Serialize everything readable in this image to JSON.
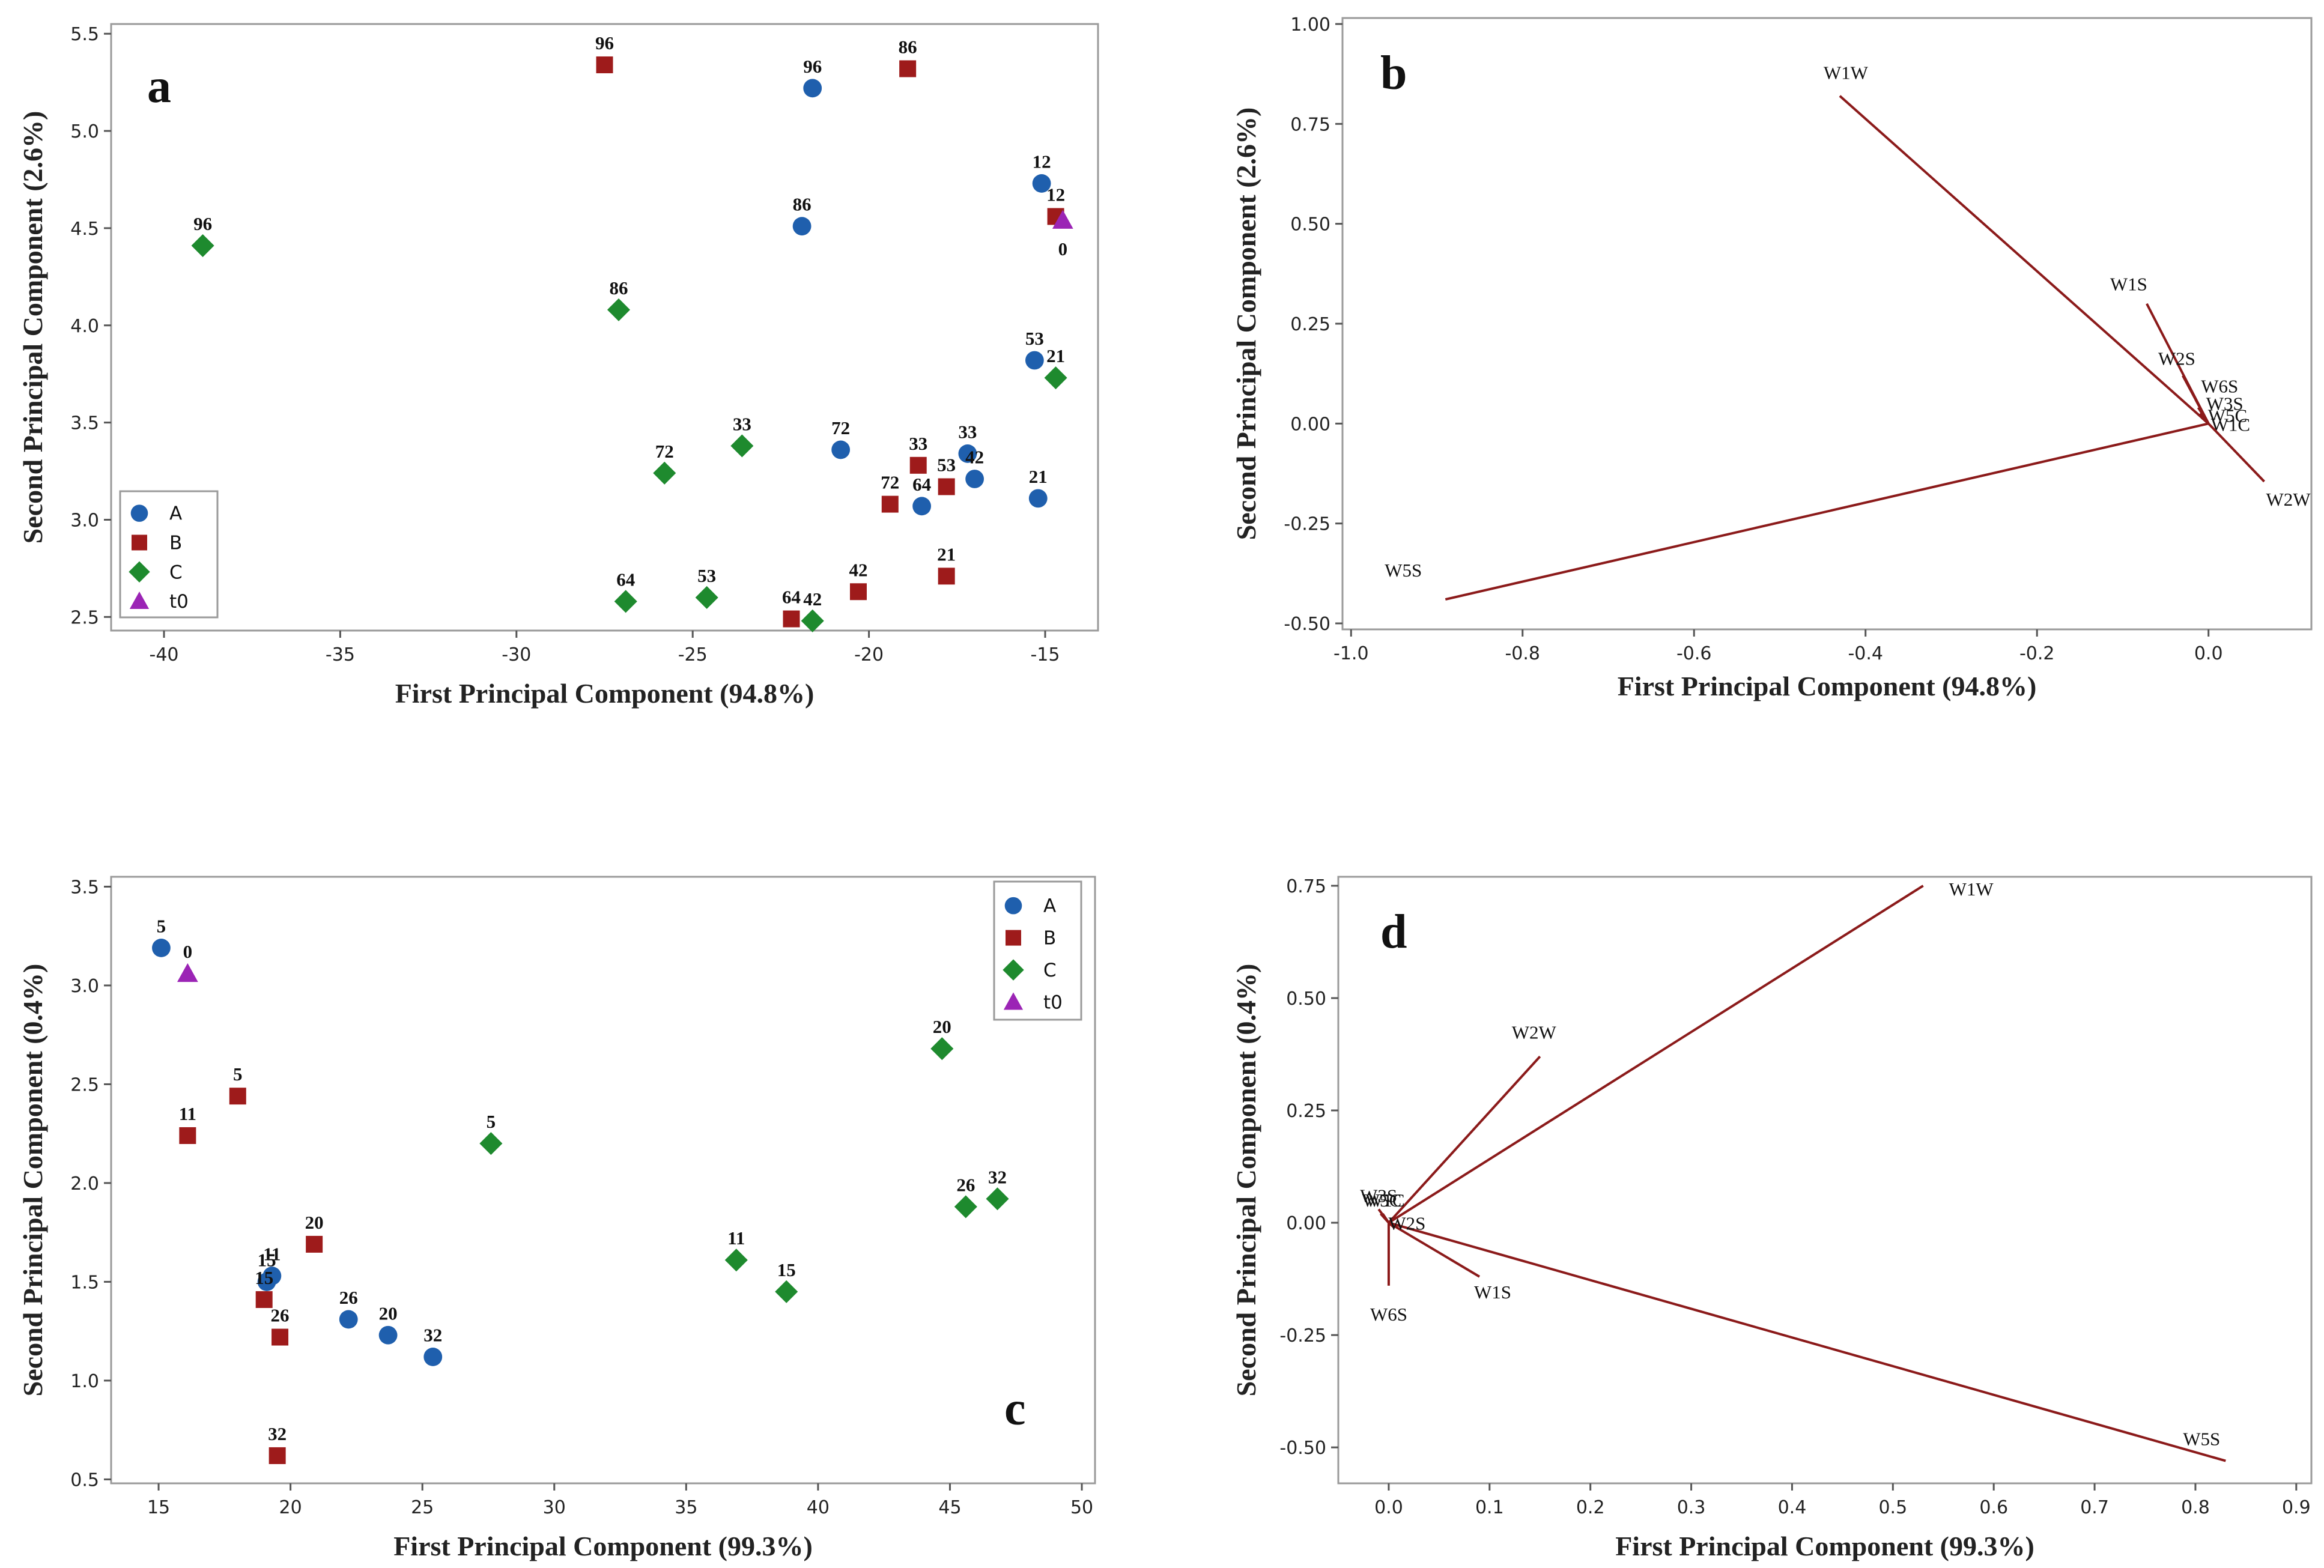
{
  "colors": {
    "A": "#1f5fad",
    "B": "#9e1b1b",
    "C": "#1e8a2e",
    "t0": "#9b24b5",
    "vector": "#8b1a1a"
  },
  "chart_data": [
    {
      "panel": "a",
      "type": "scatter",
      "xlabel": "First Principal Component (94.8%)",
      "ylabel": "Second Principal Component (2.6%)",
      "xlim": [
        -41.5,
        -13.5
      ],
      "ylim": [
        2.43,
        5.55
      ],
      "xticks": [
        -40,
        -35,
        -30,
        -25,
        -20,
        -15
      ],
      "yticks": [
        2.5,
        3.0,
        3.5,
        4.0,
        4.5,
        5.0,
        5.5
      ],
      "yticklabels": [
        "2.5",
        "3.0",
        "3.5",
        "4.0",
        "4.5",
        "5.0",
        "5.5"
      ],
      "legend": {
        "position": "bottom-left",
        "entries": [
          "A",
          "B",
          "C",
          "t0"
        ]
      },
      "series": [
        {
          "name": "A",
          "marker": "circle",
          "points": [
            {
              "x": -21.6,
              "y": 5.22,
              "label": "96"
            },
            {
              "x": -21.9,
              "y": 4.51,
              "label": "86"
            },
            {
              "x": -15.1,
              "y": 4.73,
              "label": "12"
            },
            {
              "x": -15.3,
              "y": 3.82,
              "label": "53"
            },
            {
              "x": -20.8,
              "y": 3.36,
              "label": "72"
            },
            {
              "x": -17.2,
              "y": 3.34,
              "label": "33"
            },
            {
              "x": -17.0,
              "y": 3.21,
              "label": "42"
            },
            {
              "x": -18.5,
              "y": 3.07,
              "label": "64"
            },
            {
              "x": -15.2,
              "y": 3.11,
              "label": "21"
            }
          ]
        },
        {
          "name": "B",
          "marker": "square",
          "points": [
            {
              "x": -27.5,
              "y": 5.34,
              "label": "96"
            },
            {
              "x": -18.9,
              "y": 5.32,
              "label": "86"
            },
            {
              "x": -14.7,
              "y": 4.56,
              "label": "12"
            },
            {
              "x": -18.6,
              "y": 3.28,
              "label": "33"
            },
            {
              "x": -17.8,
              "y": 3.17,
              "label": "53"
            },
            {
              "x": -19.4,
              "y": 3.08,
              "label": "72"
            },
            {
              "x": -17.8,
              "y": 2.71,
              "label": "21"
            },
            {
              "x": -20.3,
              "y": 2.63,
              "label": "42"
            },
            {
              "x": -22.2,
              "y": 2.49,
              "label": "64"
            }
          ]
        },
        {
          "name": "C",
          "marker": "diamond",
          "points": [
            {
              "x": -38.9,
              "y": 4.41,
              "label": "96"
            },
            {
              "x": -27.1,
              "y": 4.08,
              "label": "86"
            },
            {
              "x": -14.7,
              "y": 3.73,
              "label": "21"
            },
            {
              "x": -23.6,
              "y": 3.38,
              "label": "33"
            },
            {
              "x": -25.8,
              "y": 3.24,
              "label": "72"
            },
            {
              "x": -26.9,
              "y": 2.58,
              "label": "64"
            },
            {
              "x": -24.6,
              "y": 2.6,
              "label": "53"
            },
            {
              "x": -21.6,
              "y": 2.48,
              "label": "42"
            }
          ]
        },
        {
          "name": "t0",
          "marker": "triangle",
          "points": [
            {
              "x": -14.5,
              "y": 4.54,
              "label": "0"
            }
          ]
        }
      ]
    },
    {
      "panel": "b",
      "type": "line",
      "subtype": "biplot-vectors",
      "xlabel": "First Principal Component (94.8%)",
      "ylabel": "Second Principal Component (2.6%)",
      "xlim": [
        -1.01,
        0.12
      ],
      "ylim": [
        -0.515,
        1.015
      ],
      "xticks": [
        -1.0,
        -0.8,
        -0.6,
        -0.4,
        -0.2,
        0.0
      ],
      "xticklabels": [
        "-1.0",
        "-0.8",
        "-0.6",
        "-0.4",
        "-0.2",
        "0.0"
      ],
      "yticks": [
        -0.5,
        -0.25,
        0.0,
        0.25,
        0.5,
        0.75,
        1.0
      ],
      "yticklabels": [
        "-0.50",
        "-0.25",
        "0.00",
        "0.25",
        "0.50",
        "0.75",
        "1.00"
      ],
      "vectors": [
        {
          "name": "W1W",
          "x": -0.43,
          "y": 0.82,
          "label": "W1W"
        },
        {
          "name": "W1S",
          "x": -0.072,
          "y": 0.3,
          "label": "W1S"
        },
        {
          "name": "W2S",
          "x": -0.03,
          "y": 0.12,
          "label": "W2S"
        },
        {
          "name": "W6S",
          "x": -0.015,
          "y": 0.06,
          "label": "W6S"
        },
        {
          "name": "W3S",
          "x": -0.012,
          "y": 0.04,
          "label": "W3S"
        },
        {
          "name": "W5C",
          "x": -0.01,
          "y": 0.025,
          "label": "W5C"
        },
        {
          "name": "W1C",
          "x": -0.008,
          "y": 0.015,
          "label": "W1C"
        },
        {
          "name": "W2W",
          "x": 0.065,
          "y": -0.145,
          "label": "W2W"
        },
        {
          "name": "W5S",
          "x": -0.89,
          "y": -0.44,
          "label": "W5S"
        }
      ]
    },
    {
      "panel": "c",
      "type": "scatter",
      "xlabel": "First Principal Component (99.3%)",
      "ylabel": "Second Principal Component (0.4%)",
      "xlim": [
        13.2,
        50.5
      ],
      "ylim": [
        0.48,
        3.55
      ],
      "xticks": [
        15,
        20,
        25,
        30,
        35,
        40,
        45,
        50
      ],
      "yticks": [
        0.5,
        1.0,
        1.5,
        2.0,
        2.5,
        3.0,
        3.5
      ],
      "yticklabels": [
        "0.5",
        "1.0",
        "1.5",
        "2.0",
        "2.5",
        "3.0",
        "3.5"
      ],
      "legend": {
        "position": "top-right",
        "entries": [
          "A",
          "B",
          "C",
          "t0"
        ]
      },
      "series": [
        {
          "name": "A",
          "marker": "circle",
          "points": [
            {
              "x": 15.1,
              "y": 3.19,
              "label": "5"
            },
            {
              "x": 19.3,
              "y": 1.53,
              "label": "11"
            },
            {
              "x": 19.1,
              "y": 1.5,
              "label": "15"
            },
            {
              "x": 22.2,
              "y": 1.31,
              "label": "26"
            },
            {
              "x": 23.7,
              "y": 1.23,
              "label": "20"
            },
            {
              "x": 25.4,
              "y": 1.12,
              "label": "32"
            }
          ]
        },
        {
          "name": "B",
          "marker": "square",
          "points": [
            {
              "x": 18.0,
              "y": 2.44,
              "label": "5"
            },
            {
              "x": 16.1,
              "y": 2.24,
              "label": "11"
            },
            {
              "x": 20.9,
              "y": 1.69,
              "label": "20"
            },
            {
              "x": 19.0,
              "y": 1.41,
              "label": "15"
            },
            {
              "x": 19.6,
              "y": 1.22,
              "label": "26"
            },
            {
              "x": 19.5,
              "y": 0.62,
              "label": "32"
            }
          ]
        },
        {
          "name": "C",
          "marker": "diamond",
          "points": [
            {
              "x": 27.6,
              "y": 2.2,
              "label": "5"
            },
            {
              "x": 36.9,
              "y": 1.61,
              "label": "11"
            },
            {
              "x": 38.8,
              "y": 1.45,
              "label": "15"
            },
            {
              "x": 44.7,
              "y": 2.68,
              "label": "20"
            },
            {
              "x": 45.6,
              "y": 1.88,
              "label": "26"
            },
            {
              "x": 46.8,
              "y": 1.92,
              "label": "32"
            }
          ]
        },
        {
          "name": "t0",
          "marker": "triangle",
          "points": [
            {
              "x": 16.1,
              "y": 3.06,
              "label": "0"
            }
          ]
        }
      ]
    },
    {
      "panel": "d",
      "type": "line",
      "subtype": "biplot-vectors",
      "xlabel": "First Principal Component (99.3%)",
      "ylabel": "Second Principal Component (0.4%)",
      "xlim": [
        -0.05,
        0.915
      ],
      "ylim": [
        -0.58,
        0.77
      ],
      "xticks": [
        0.0,
        0.1,
        0.2,
        0.3,
        0.4,
        0.5,
        0.6,
        0.7,
        0.8,
        0.9
      ],
      "xticklabels": [
        "0.0",
        "0.1",
        "0.2",
        "0.3",
        "0.4",
        "0.5",
        "0.6",
        "0.7",
        "0.8",
        "0.9"
      ],
      "yticks": [
        -0.5,
        -0.25,
        0.0,
        0.25,
        0.5,
        0.75
      ],
      "yticklabels": [
        "-0.50",
        "-0.25",
        "0.00",
        "0.25",
        "0.50",
        "0.75"
      ],
      "vectors": [
        {
          "name": "W1W",
          "x": 0.53,
          "y": 0.75,
          "label": "W1W"
        },
        {
          "name": "W2W",
          "x": 0.15,
          "y": 0.37,
          "label": "W2W"
        },
        {
          "name": "W5S",
          "x": 0.83,
          "y": -0.53,
          "label": "W5S"
        },
        {
          "name": "W1S",
          "x": 0.09,
          "y": -0.12,
          "label": "W1S"
        },
        {
          "name": "W6S",
          "x": 0.0,
          "y": -0.14,
          "label": "W6S"
        },
        {
          "name": "W2S",
          "x": 0.005,
          "y": -0.01,
          "label": "W2S"
        },
        {
          "name": "W3S",
          "x": -0.01,
          "y": 0.03,
          "label": "W3S"
        },
        {
          "name": "W5C",
          "x": -0.008,
          "y": 0.02,
          "label": "W5C"
        },
        {
          "name": "W1C",
          "x": -0.006,
          "y": 0.02,
          "label": "W1C"
        }
      ]
    }
  ]
}
